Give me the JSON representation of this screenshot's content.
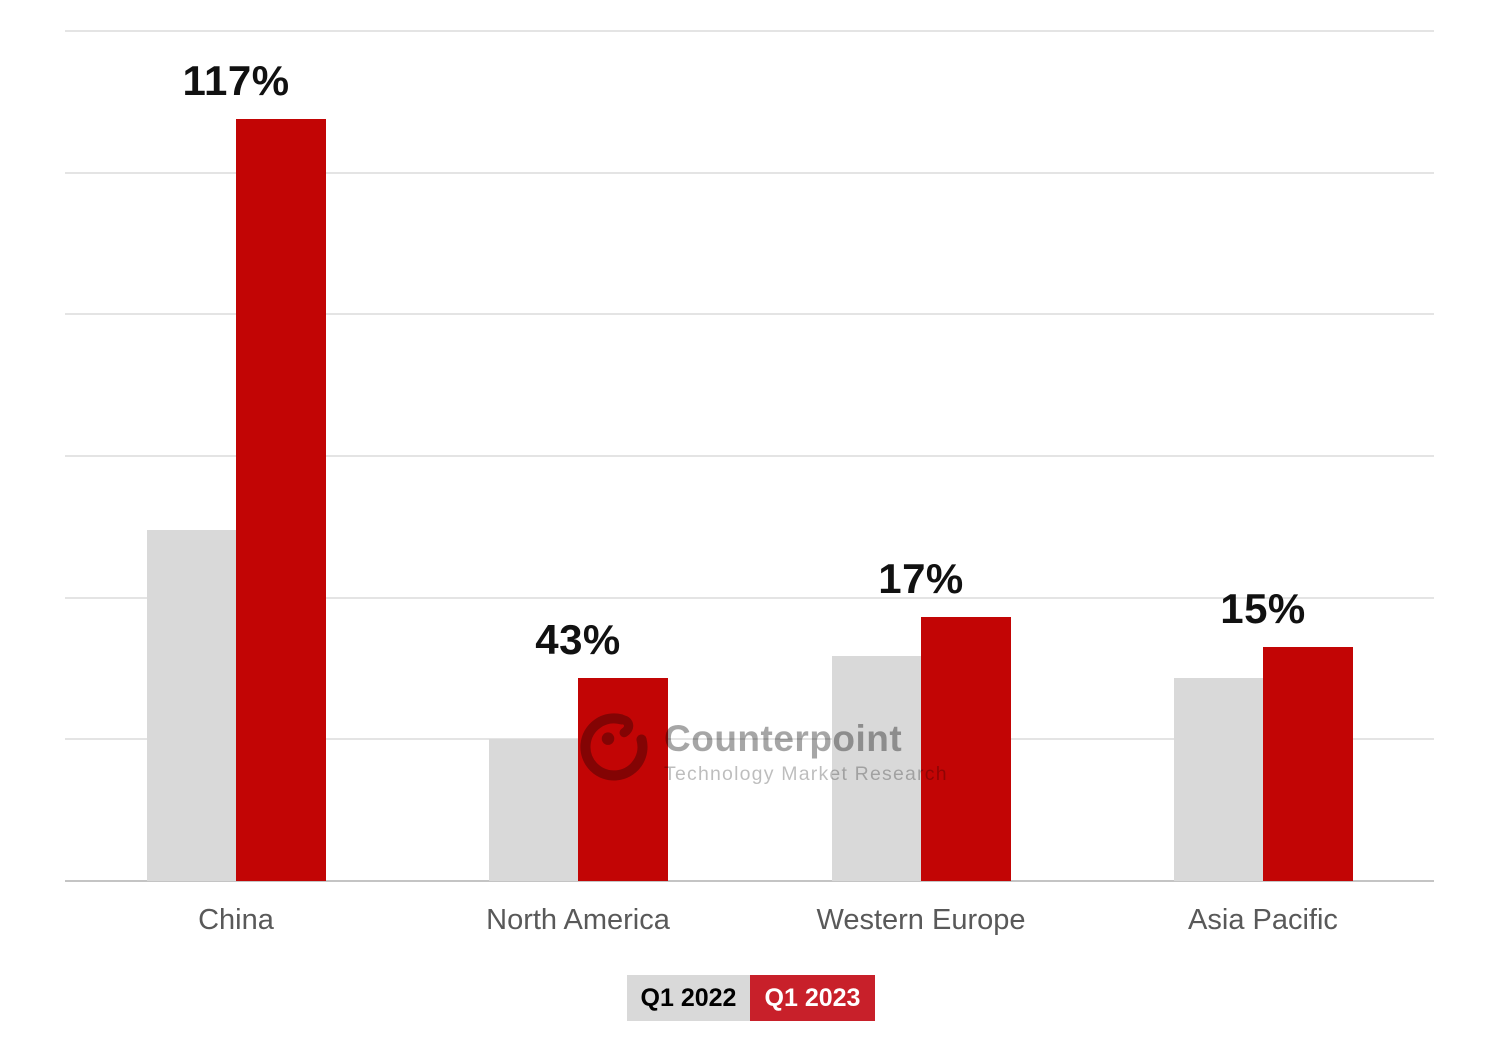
{
  "chart_data": {
    "type": "bar",
    "title": "",
    "categories": [
      "China",
      "North America",
      "Western Europe",
      "Asia Pacific"
    ],
    "series": [
      {
        "name": "Q1 2022",
        "color": "#d9d9d9",
        "values": [
          2.48,
          1.0,
          1.59,
          1.43
        ]
      },
      {
        "name": "Q1 2023",
        "color": "#c20505",
        "values": [
          5.38,
          1.43,
          1.86,
          1.65
        ]
      }
    ],
    "data_labels": {
      "series": "Q1 2023",
      "values": [
        "117%",
        "43%",
        "17%",
        "15%"
      ],
      "meaning": "YoY growth Q1 2023 vs Q1 2022"
    },
    "value_axis": {
      "min": 0,
      "max": 6,
      "tick_labels_visible": false,
      "units": "relative (no y-axis labels shown)"
    },
    "gridlines": true,
    "legend_position": "bottom-center"
  },
  "watermark": {
    "brand": "Counterpoint",
    "tagline": "Technology Market Research",
    "logo_icon": "counterpoint-swirl-logo"
  },
  "colors": {
    "bar_q1_2022": "#d9d9d9",
    "bar_q1_2023": "#c20505",
    "legend_q1_2022_bg": "#d9d9d9",
    "legend_q1_2023_bg": "#c8202a",
    "gridline": "#e4e4e4",
    "axis_line": "#c4c4c4",
    "category_label": "#595959",
    "data_label": "#111111"
  }
}
